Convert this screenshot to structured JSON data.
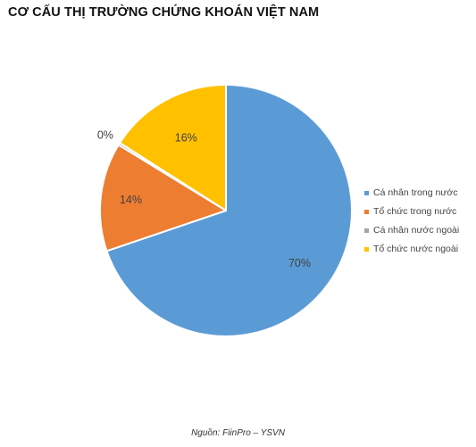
{
  "title": "CƠ CẤU THỊ TRƯỜNG CHỨNG KHOÁN VIỆT NAM",
  "source": "Nguồn: FiinPro – YSVN",
  "chart_data": {
    "type": "pie",
    "title": "CƠ CẤU THỊ TRƯỜNG CHỨNG KHOÁN VIỆT NAM",
    "legend_position": "right",
    "start_angle_deg": 0,
    "direction": "clockwise",
    "slices": [
      {
        "name": "Cá nhân trong nước",
        "value": 70,
        "label": "70%",
        "color": "#5B9BD5"
      },
      {
        "name": "Tổ chức trong nước",
        "value": 14,
        "label": "14%",
        "color": "#ED7D31"
      },
      {
        "name": "Cá nhân nước ngoài",
        "value": 0.3,
        "label": "0%",
        "color": "#A5A5A5"
      },
      {
        "name": "Tổ chức nước ngoài",
        "value": 16,
        "label": "16%",
        "color": "#FFC000"
      }
    ]
  }
}
